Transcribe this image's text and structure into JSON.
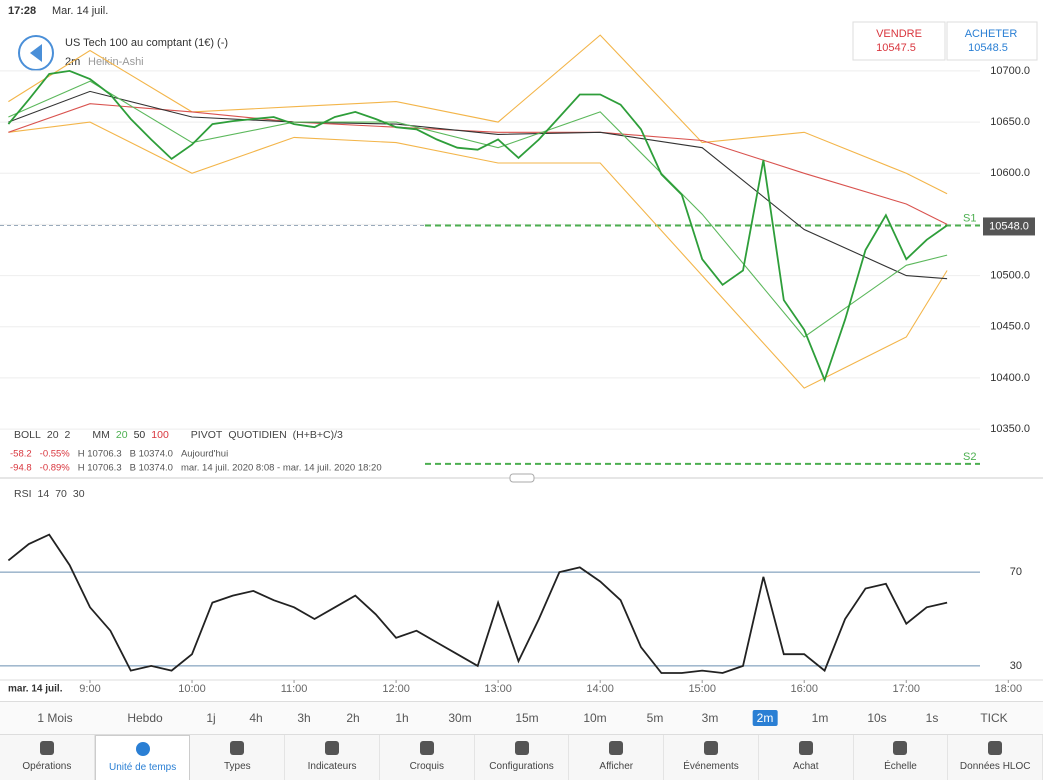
{
  "status": {
    "time": "17:28",
    "date": "Mar. 14 juil."
  },
  "header": {
    "instrument": "US Tech 100 au comptant (1€) (-)",
    "interval": "2m",
    "style": "Heikin-Ashi",
    "sell_label": "VENDRE",
    "sell": "10547.5",
    "buy_label": "ACHETER",
    "buy": "10548.5"
  },
  "legend": {
    "boll": [
      "BOLL",
      "20",
      "2"
    ],
    "mm": [
      "MM",
      "20",
      "50",
      "100"
    ],
    "pivot": [
      "PIVOT",
      "QUOTIDIEN",
      "(H+B+C)/3"
    ],
    "rsi": [
      "RSI",
      "14",
      "70",
      "30"
    ],
    "rows": [
      [
        "-58.2",
        "-0.55%",
        "H 10706.3",
        "B 10374.0",
        "Aujourd'hui"
      ],
      [
        "-94.8",
        "-0.89%",
        "H 10706.3",
        "B 10374.0",
        "mar. 14 juil. 2020 8:08 - mar. 14 juil. 2020 18:20"
      ]
    ]
  },
  "chart_data": [
    {
      "type": "line",
      "xlim": [
        8.118,
        18.34
      ],
      "ylim": [
        10310,
        10740
      ],
      "yticks": [
        {
          "value": 10350,
          "label": "10350.0"
        },
        {
          "value": 10400,
          "label": "10400.0"
        },
        {
          "value": 10450,
          "label": "10450.0"
        },
        {
          "value": 10500,
          "label": "10500.0"
        },
        {
          "value": 10550,
          "label": "10550.0"
        },
        {
          "value": 10600,
          "label": "10600.0"
        },
        {
          "value": 10650,
          "label": "10650.0"
        },
        {
          "value": 10700,
          "label": "10700.0"
        }
      ],
      "current": {
        "value": 10548,
        "label": "10548.0"
      },
      "pivots": [
        {
          "label": "S1",
          "value": 10549,
          "color": "#4caf50"
        },
        {
          "label": "S2",
          "value": 10316,
          "color": "#4caf50"
        }
      ],
      "series": [
        {
          "color": "#f3b54a",
          "x": [
            8.2,
            9,
            10,
            11,
            12,
            13,
            14,
            15,
            16,
            17,
            17.4
          ],
          "values": [
            10670,
            10720,
            10660,
            10665,
            10670,
            10650,
            10735,
            10630,
            10640,
            10600,
            10580
          ]
        },
        {
          "color": "#f3b54a",
          "x": [
            8.2,
            9,
            10,
            11,
            12,
            13,
            14,
            15,
            16,
            17,
            17.4
          ],
          "values": [
            10640,
            10650,
            10600,
            10635,
            10630,
            10610,
            10610,
            10500,
            10390,
            10440,
            10505
          ]
        },
        {
          "color": "#d9534f",
          "x": [
            8.2,
            9,
            10,
            11,
            12,
            13,
            14,
            15,
            16,
            17,
            17.4
          ],
          "values": [
            10640,
            10668,
            10660,
            10650,
            10645,
            10640,
            10640,
            10632,
            10600,
            10570,
            10550
          ]
        },
        {
          "color": "#333333",
          "x": [
            8.2,
            9,
            10,
            11,
            12,
            13,
            14,
            15,
            16,
            17,
            17.4
          ],
          "values": [
            10650,
            10680,
            10655,
            10650,
            10648,
            10638,
            10640,
            10625,
            10545,
            10500,
            10497
          ]
        },
        {
          "color": "#5cb85c",
          "x": [
            8.2,
            9,
            10,
            11,
            12,
            13,
            14,
            15,
            16,
            17,
            17.4
          ],
          "values": [
            10655,
            10690,
            10630,
            10650,
            10650,
            10625,
            10660,
            10560,
            10440,
            10510,
            10520
          ]
        },
        {
          "color": "#2e9e3a",
          "x": [
            8.2,
            8.4,
            8.6,
            8.8,
            9,
            9.2,
            9.4,
            9.6,
            9.8,
            10,
            10.2,
            10.4,
            10.6,
            10.8,
            11,
            11.2,
            11.4,
            11.6,
            11.8,
            12,
            12.2,
            12.4,
            12.6,
            12.8,
            13,
            13.2,
            13.4,
            13.6,
            13.8,
            14,
            14.2,
            14.4,
            14.6,
            14.8,
            15,
            15.2,
            15.4,
            15.6,
            15.8,
            16,
            16.2,
            16.4,
            16.6,
            16.8,
            17,
            17.2,
            17.4
          ],
          "values": [
            10648,
            10672,
            10697,
            10700,
            10692,
            10677,
            10653,
            10633,
            10614,
            10628,
            10648,
            10651,
            10653,
            10655,
            10648,
            10645,
            10655,
            10660,
            10653,
            10645,
            10643,
            10633,
            10625,
            10623,
            10633,
            10615,
            10633,
            10655,
            10677,
            10677,
            10667,
            10643,
            10599,
            10579,
            10516,
            10491,
            10505,
            10613,
            10476,
            10447,
            10398,
            10457,
            10525,
            10559,
            10516,
            10535,
            10549
          ]
        }
      ]
    },
    {
      "type": "line",
      "xlim": [
        8.118,
        18.34
      ],
      "ylim": [
        24,
        105
      ],
      "yticks": [
        30,
        70
      ],
      "x_first": "mar. 14 juil.",
      "xticks": [
        {
          "value": 9,
          "label": "9:00"
        },
        {
          "value": 10,
          "label": "10:00"
        },
        {
          "value": 11,
          "label": "11:00"
        },
        {
          "value": 12,
          "label": "12:00"
        },
        {
          "value": 13,
          "label": "13:00"
        },
        {
          "value": 14,
          "label": "14:00"
        },
        {
          "value": 15,
          "label": "15:00"
        },
        {
          "value": 16,
          "label": "16:00"
        },
        {
          "value": 17,
          "label": "17:00"
        },
        {
          "value": 18,
          "label": "18:00"
        }
      ],
      "series": [
        {
          "color": "#222222",
          "x": [
            8.2,
            8.4,
            8.6,
            8.8,
            9,
            9.2,
            9.4,
            9.6,
            9.8,
            10,
            10.2,
            10.4,
            10.6,
            10.8,
            11,
            11.2,
            11.4,
            11.6,
            11.8,
            12,
            12.2,
            12.4,
            12.6,
            12.8,
            13,
            13.2,
            13.4,
            13.6,
            13.8,
            14,
            14.2,
            14.4,
            14.6,
            14.8,
            15,
            15.2,
            15.4,
            15.6,
            15.8,
            16,
            16.2,
            16.4,
            16.6,
            16.8,
            17,
            17.2,
            17.4
          ],
          "values": [
            75,
            82,
            86,
            73,
            55,
            45,
            28,
            30,
            28,
            35,
            57,
            60,
            62,
            58,
            55,
            50,
            55,
            60,
            52,
            42,
            45,
            40,
            35,
            30,
            57,
            32,
            50,
            70,
            72,
            66,
            58,
            38,
            27,
            27,
            28,
            27,
            30,
            68,
            35,
            35,
            28,
            50,
            63,
            65,
            48,
            55,
            57
          ]
        }
      ]
    }
  ],
  "timeframes": {
    "items": [
      "1 Mois",
      "Hebdo",
      "1j",
      "4h",
      "3h",
      "2h",
      "1h",
      "30m",
      "15m",
      "10m",
      "5m",
      "3m",
      "2m",
      "1m",
      "10s",
      "1s",
      "TICK"
    ],
    "selected": 12
  },
  "tabs": {
    "items": [
      "Opérations",
      "Unité de temps",
      "Types",
      "Indicateurs",
      "Croquis",
      "Configurations",
      "Afficher",
      "Événements",
      "Achat",
      "Échelle",
      "Données HLOC"
    ],
    "selected": 1
  }
}
